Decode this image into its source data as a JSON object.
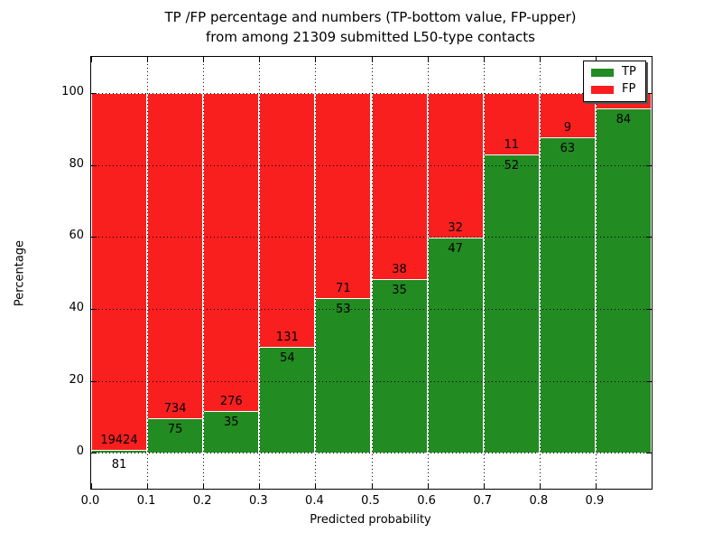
{
  "figure": {
    "title_line1": "TP /FP percentage and numbers (TP-bottom value, FP-upper)",
    "title_line2": "from among 21309 submitted L50-type contacts"
  },
  "colors": {
    "tp": "#228b22",
    "fp": "#f91f1f",
    "grid": "#000000",
    "background": "#ffffff"
  },
  "chart_data": {
    "type": "bar",
    "subtype": "stacked-percentage",
    "title": "TP /FP percentage and numbers (TP-bottom value, FP-upper) from among 21309 submitted L50-type contacts",
    "xlabel": "Predicted probability",
    "ylabel": "Percentage",
    "ylim": [
      -10,
      110
    ],
    "grid": true,
    "legend_position": "upper right",
    "xtick_labels": [
      "0.0",
      "0.1",
      "0.2",
      "0.3",
      "0.4",
      "0.5",
      "0.6",
      "0.7",
      "0.8",
      "0.9"
    ],
    "yticks": [
      0,
      20,
      40,
      60,
      80,
      100
    ],
    "legend": {
      "entries": [
        {
          "label": "TP",
          "color": "#228b22"
        },
        {
          "label": "FP",
          "color": "#f91f1f"
        }
      ]
    },
    "bars": [
      {
        "bin": "0.0-0.1",
        "tp": 81,
        "fp": 19424,
        "tp_pct": 0.42,
        "tp_label": "81",
        "fp_label": "19424",
        "tp_label_below_axis": true
      },
      {
        "bin": "0.1-0.2",
        "tp": 75,
        "fp": 734,
        "tp_pct": 9.27,
        "tp_label": "75",
        "fp_label": "734"
      },
      {
        "bin": "0.2-0.3",
        "tp": 35,
        "fp": 276,
        "tp_pct": 11.25,
        "tp_label": "35",
        "fp_label": "276"
      },
      {
        "bin": "0.3-0.4",
        "tp": 54,
        "fp": 131,
        "tp_pct": 29.19,
        "tp_label": "54",
        "fp_label": "131"
      },
      {
        "bin": "0.4-0.5",
        "tp": 53,
        "fp": 71,
        "tp_pct": 42.74,
        "tp_label": "53",
        "fp_label": "71"
      },
      {
        "bin": "0.5-0.6",
        "tp": 35,
        "fp": 38,
        "tp_pct": 47.95,
        "tp_label": "35",
        "fp_label": "38"
      },
      {
        "bin": "0.6-0.7",
        "tp": 47,
        "fp": 32,
        "tp_pct": 59.49,
        "tp_label": "47",
        "fp_label": "32"
      },
      {
        "bin": "0.7-0.8",
        "tp": 52,
        "fp": 11,
        "tp_pct": 82.54,
        "tp_label": "52",
        "fp_label": "11"
      },
      {
        "bin": "0.8-0.9",
        "tp": 63,
        "fp": 9,
        "tp_pct": 87.5,
        "tp_label": "63",
        "fp_label": "9"
      },
      {
        "bin": "0.9-1.0",
        "tp": 84,
        "fp": null,
        "tp_pct": 95.45,
        "tp_label": "84",
        "fp_label": null
      }
    ]
  }
}
